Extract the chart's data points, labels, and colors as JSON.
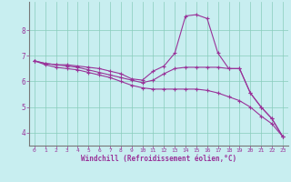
{
  "background_color": "#c8eef0",
  "line_color": "#993399",
  "grid_color": "#88ccbb",
  "xlabel": "Windchill (Refroidissement éolien,°C)",
  "xlim": [
    -0.5,
    23.5
  ],
  "ylim": [
    3.5,
    9.1
  ],
  "yticks": [
    4,
    5,
    6,
    7,
    8
  ],
  "xticks": [
    0,
    1,
    2,
    3,
    4,
    5,
    6,
    7,
    8,
    9,
    10,
    11,
    12,
    13,
    14,
    15,
    16,
    17,
    18,
    19,
    20,
    21,
    22,
    23
  ],
  "series": [
    {
      "x": [
        0,
        1,
        2,
        3,
        4,
        5,
        6,
        7,
        8,
        9,
        10,
        11,
        12,
        13,
        14,
        15,
        16,
        17,
        18,
        19,
        20,
        21,
        22,
        23
      ],
      "y": [
        6.8,
        6.7,
        6.65,
        6.65,
        6.6,
        6.55,
        6.5,
        6.4,
        6.3,
        6.1,
        6.05,
        6.4,
        6.6,
        7.1,
        8.55,
        8.6,
        8.45,
        7.1,
        6.5,
        6.5,
        5.55,
        5.0,
        4.55,
        3.85
      ]
    },
    {
      "x": [
        0,
        1,
        2,
        3,
        4,
        5,
        6,
        7,
        8,
        9,
        10,
        11,
        12,
        13,
        14,
        15,
        16,
        17,
        18,
        19,
        20,
        21,
        22,
        23
      ],
      "y": [
        6.8,
        6.7,
        6.65,
        6.6,
        6.55,
        6.45,
        6.35,
        6.25,
        6.15,
        6.05,
        5.95,
        6.05,
        6.3,
        6.5,
        6.55,
        6.55,
        6.55,
        6.55,
        6.5,
        6.5,
        5.55,
        5.0,
        4.55,
        3.85
      ]
    },
    {
      "x": [
        0,
        1,
        2,
        3,
        4,
        5,
        6,
        7,
        8,
        9,
        10,
        11,
        12,
        13,
        14,
        15,
        16,
        17,
        18,
        19,
        20,
        21,
        22,
        23
      ],
      "y": [
        6.8,
        6.65,
        6.55,
        6.5,
        6.45,
        6.35,
        6.25,
        6.15,
        6.0,
        5.85,
        5.75,
        5.7,
        5.7,
        5.7,
        5.7,
        5.7,
        5.65,
        5.55,
        5.4,
        5.25,
        5.0,
        4.65,
        4.35,
        3.85
      ]
    }
  ]
}
